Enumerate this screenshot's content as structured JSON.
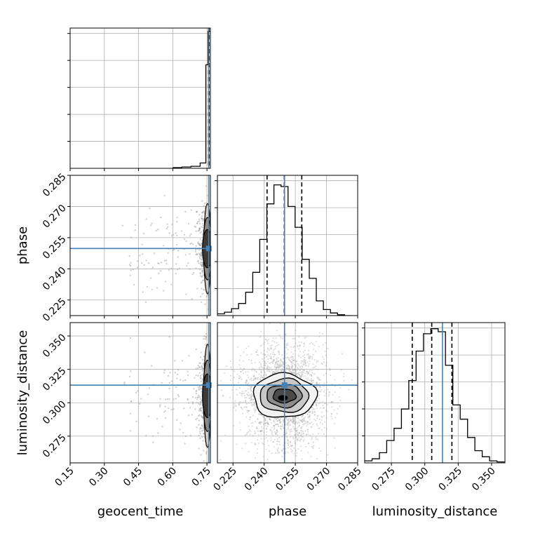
{
  "chart_data": {
    "type": "corner",
    "parameters": [
      "geocent_time",
      "phase",
      "luminosity_distance"
    ],
    "axes": {
      "geocent_time": {
        "label": "geocent_time",
        "range": [
          0.15,
          0.765
        ],
        "ticks": [
          0.15,
          0.3,
          0.45,
          0.6,
          0.75
        ],
        "tick_labels": [
          "0.15",
          "0.30",
          "0.45",
          "0.60",
          "0.75"
        ]
      },
      "phase": {
        "label": "phase",
        "range": [
          0.2175,
          0.285
        ],
        "ticks": [
          0.225,
          0.24,
          0.255,
          0.27,
          0.285
        ],
        "tick_labels": [
          "0.225",
          "0.240",
          "0.255",
          "0.270",
          "0.285"
        ]
      },
      "luminosity_distance": {
        "label": "luminosity_distance",
        "range": [
          0.255,
          0.36
        ],
        "ticks": [
          0.275,
          0.3,
          0.325,
          0.35
        ],
        "tick_labels": [
          "0.275",
          "0.300",
          "0.325",
          "0.350"
        ]
      }
    },
    "truths": {
      "geocent_time": 0.758,
      "phase": 0.2498,
      "luminosity_distance": 0.3132
    },
    "quantiles": {
      "geocent_time": [
        0.7575,
        0.7585,
        0.7595
      ],
      "phase": [
        0.2414,
        0.2497,
        0.2581
      ],
      "luminosity_distance": [
        0.2906,
        0.3052,
        0.3203
      ]
    },
    "histograms": {
      "geocent_time": {
        "edges": [
          0.6,
          0.64,
          0.68,
          0.72,
          0.745,
          0.755,
          0.765
        ],
        "counts": [
          1,
          2,
          3,
          8,
          155,
          205
        ],
        "ylim": [
          0,
          210
        ]
      },
      "phase": {
        "edges": [
          0.2175,
          0.2209,
          0.2243,
          0.2277,
          0.2311,
          0.2345,
          0.2379,
          0.2413,
          0.2447,
          0.2481,
          0.2515,
          0.2549,
          0.2583,
          0.2617,
          0.2651,
          0.2685,
          0.2719,
          0.2753,
          0.2787,
          0.2821
        ],
        "counts": [
          2,
          4,
          8,
          14,
          27,
          50,
          88,
          129,
          151,
          149,
          126,
          102,
          65,
          43,
          17,
          7,
          3,
          1,
          0
        ],
        "ylim": [
          0,
          162
        ]
      },
      "luminosity_distance": {
        "edges": [
          0.255,
          0.2605,
          0.266,
          0.2715,
          0.277,
          0.2825,
          0.288,
          0.2935,
          0.299,
          0.3045,
          0.31,
          0.3155,
          0.321,
          0.3265,
          0.332,
          0.3375,
          0.343,
          0.3485,
          0.354,
          0.36
        ],
        "counts": [
          2,
          4,
          10,
          22,
          34,
          53,
          81,
          110,
          127,
          132,
          129,
          96,
          57,
          43,
          25,
          12,
          6,
          2,
          1
        ],
        "ylim": [
          0,
          138
        ]
      }
    },
    "contours_2d": [
      {
        "x": "phase",
        "y": "luminosity_distance",
        "center": [
          0.2497,
          0.3052
        ],
        "sigma_x": [
          0.0055,
          0.0085,
          0.0117,
          0.0152
        ],
        "sigma_y": [
          0.0052,
          0.0085,
          0.0125,
          0.0165
        ]
      }
    ],
    "title": "",
    "grid": true
  }
}
